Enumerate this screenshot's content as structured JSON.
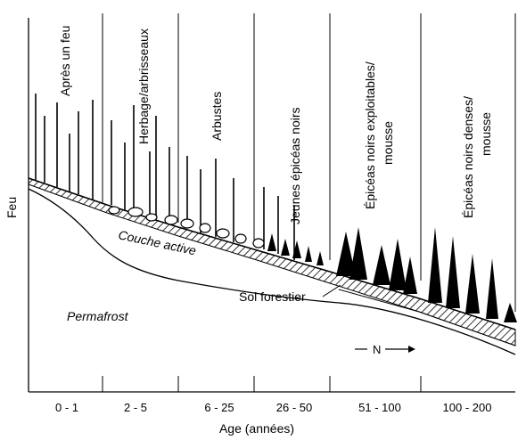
{
  "diagram": {
    "y_axis_label": "Feu",
    "x_axis_label": "Age (années)",
    "stages": [
      "Après un feu",
      "Herbage/arbrisseaux",
      "Arbustes",
      "Jeunes épicéas noirs",
      "Épicéas noirs exploitables/ mousse",
      "Épicéas noirs denses/ mousse"
    ],
    "age_classes": [
      "0 - 1",
      "2 - 5",
      "6 - 25",
      "26 - 50",
      "51 - 100",
      "100 - 200"
    ],
    "layers": {
      "active": "Couche active",
      "forest_soil": "Sol forestier",
      "permafrost": "Permafrost"
    },
    "north": "N"
  }
}
